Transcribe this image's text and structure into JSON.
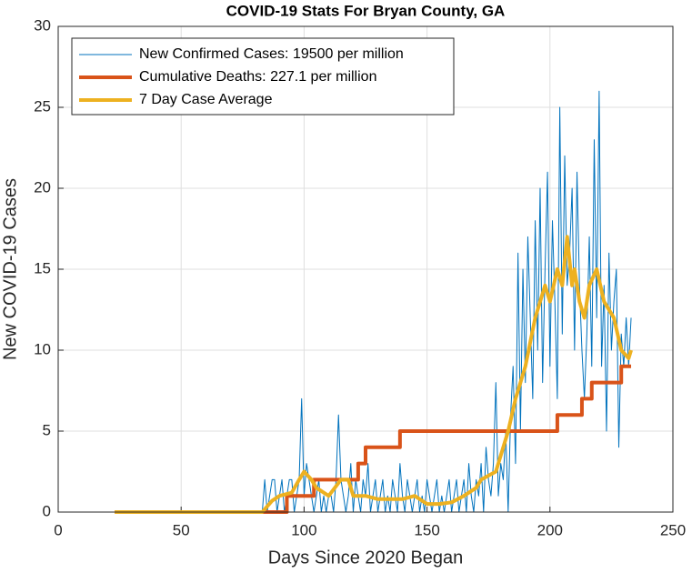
{
  "chart_data": {
    "type": "line",
    "title": "COVID-19 Stats For Bryan County, GA",
    "xlabel": "Days Since 2020 Began",
    "ylabel": "New COVID-19 Cases",
    "xlim": [
      0,
      250
    ],
    "xticks": [
      0,
      50,
      100,
      150,
      200,
      250
    ],
    "ylim": [
      0,
      30
    ],
    "yticks": [
      0,
      5,
      10,
      15,
      20,
      25,
      30
    ],
    "grid": true,
    "legend": "upper left",
    "series": [
      {
        "name": "New Confirmed Cases: 19500 per million",
        "color": "#0072bd",
        "width": 1,
        "x": [
          23,
          83,
          84,
          85,
          86,
          87,
          88,
          89,
          90,
          91,
          92,
          93,
          94,
          95,
          96,
          97,
          98,
          99,
          100,
          101,
          102,
          103,
          104,
          105,
          106,
          107,
          108,
          109,
          110,
          111,
          112,
          113,
          114,
          115,
          116,
          117,
          118,
          119,
          120,
          121,
          122,
          123,
          124,
          125,
          126,
          127,
          128,
          129,
          130,
          131,
          132,
          133,
          134,
          135,
          136,
          137,
          138,
          139,
          140,
          141,
          142,
          143,
          144,
          145,
          146,
          147,
          148,
          149,
          150,
          151,
          152,
          153,
          154,
          155,
          156,
          157,
          158,
          159,
          160,
          161,
          162,
          163,
          164,
          165,
          166,
          167,
          168,
          169,
          170,
          171,
          172,
          173,
          174,
          175,
          176,
          177,
          178,
          179,
          180,
          181,
          182,
          183,
          184,
          185,
          186,
          187,
          188,
          189,
          190,
          191,
          192,
          193,
          194,
          195,
          196,
          197,
          198,
          199,
          200,
          201,
          202,
          203,
          204,
          205,
          206,
          207,
          208,
          209,
          210,
          211,
          212,
          213,
          214,
          215,
          216,
          217,
          218,
          219,
          220,
          221,
          222,
          223,
          224,
          225,
          226,
          227,
          228,
          229,
          230,
          231,
          232,
          233
        ],
        "values": [
          0,
          0,
          2,
          0,
          1,
          2,
          2,
          0,
          1,
          2,
          0,
          1,
          2,
          2,
          0,
          1,
          2,
          7,
          1,
          3,
          2,
          1,
          0,
          1,
          2,
          0,
          1,
          0,
          1,
          1,
          0,
          2,
          6,
          2,
          1,
          0,
          1,
          3,
          0,
          2,
          1,
          0,
          2,
          1,
          3,
          0,
          1,
          2,
          0,
          1,
          2,
          0,
          1,
          0,
          2,
          1,
          0,
          3,
          1,
          0,
          2,
          1,
          0,
          1,
          2,
          0,
          1,
          0,
          2,
          1,
          0,
          1,
          2,
          0,
          1,
          0,
          1,
          2,
          0,
          1,
          2,
          0,
          1,
          2,
          0,
          3,
          1,
          0,
          2,
          1,
          3,
          0,
          4,
          2,
          1,
          3,
          8,
          1,
          3,
          2,
          5,
          0,
          6,
          9,
          3,
          16,
          5,
          15,
          8,
          17,
          12,
          7,
          18,
          10,
          20,
          8,
          15,
          21,
          9,
          18,
          13,
          7,
          25,
          11,
          22,
          14,
          16,
          20,
          10,
          21,
          14,
          10,
          7,
          11,
          17,
          9,
          23,
          12,
          26,
          9,
          14,
          5,
          16,
          10,
          13,
          15,
          4,
          11,
          9,
          12,
          9,
          12
        ]
      },
      {
        "name": "Cumulative Deaths: 227.1 per million",
        "color": "#d95319",
        "width": 4,
        "x": [
          23,
          93,
          93,
          104,
          104,
          122,
          122,
          125,
          125,
          139,
          139,
          203,
          203,
          213,
          213,
          217,
          217,
          229,
          229,
          233
        ],
        "values": [
          0,
          0,
          1,
          1,
          2,
          2,
          3,
          3,
          4,
          4,
          5,
          5,
          6,
          6,
          7,
          7,
          8,
          8,
          9,
          9
        ]
      },
      {
        "name": "7 Day Case Average",
        "color": "#edb120",
        "width": 4,
        "x": [
          23,
          83,
          87,
          90,
          95,
          98,
          100,
          103,
          105,
          110,
          115,
          118,
          120,
          125,
          130,
          140,
          145,
          150,
          155,
          160,
          165,
          170,
          172,
          178,
          183,
          186,
          190,
          194,
          198,
          200,
          203,
          205,
          207,
          209,
          210,
          212,
          214,
          216,
          219,
          222,
          226,
          229,
          232,
          233
        ],
        "values": [
          0,
          0,
          0.7,
          1,
          1.2,
          2,
          2.5,
          2,
          1.5,
          1,
          2,
          2,
          1,
          1,
          0.8,
          0.8,
          1,
          0.5,
          0.5,
          0.6,
          1,
          1.5,
          2,
          2.5,
          5,
          7,
          9,
          12,
          14,
          13,
          15,
          14,
          17,
          14,
          15,
          13,
          12,
          14,
          15,
          13,
          12,
          10,
          9.5,
          10
        ]
      }
    ]
  }
}
